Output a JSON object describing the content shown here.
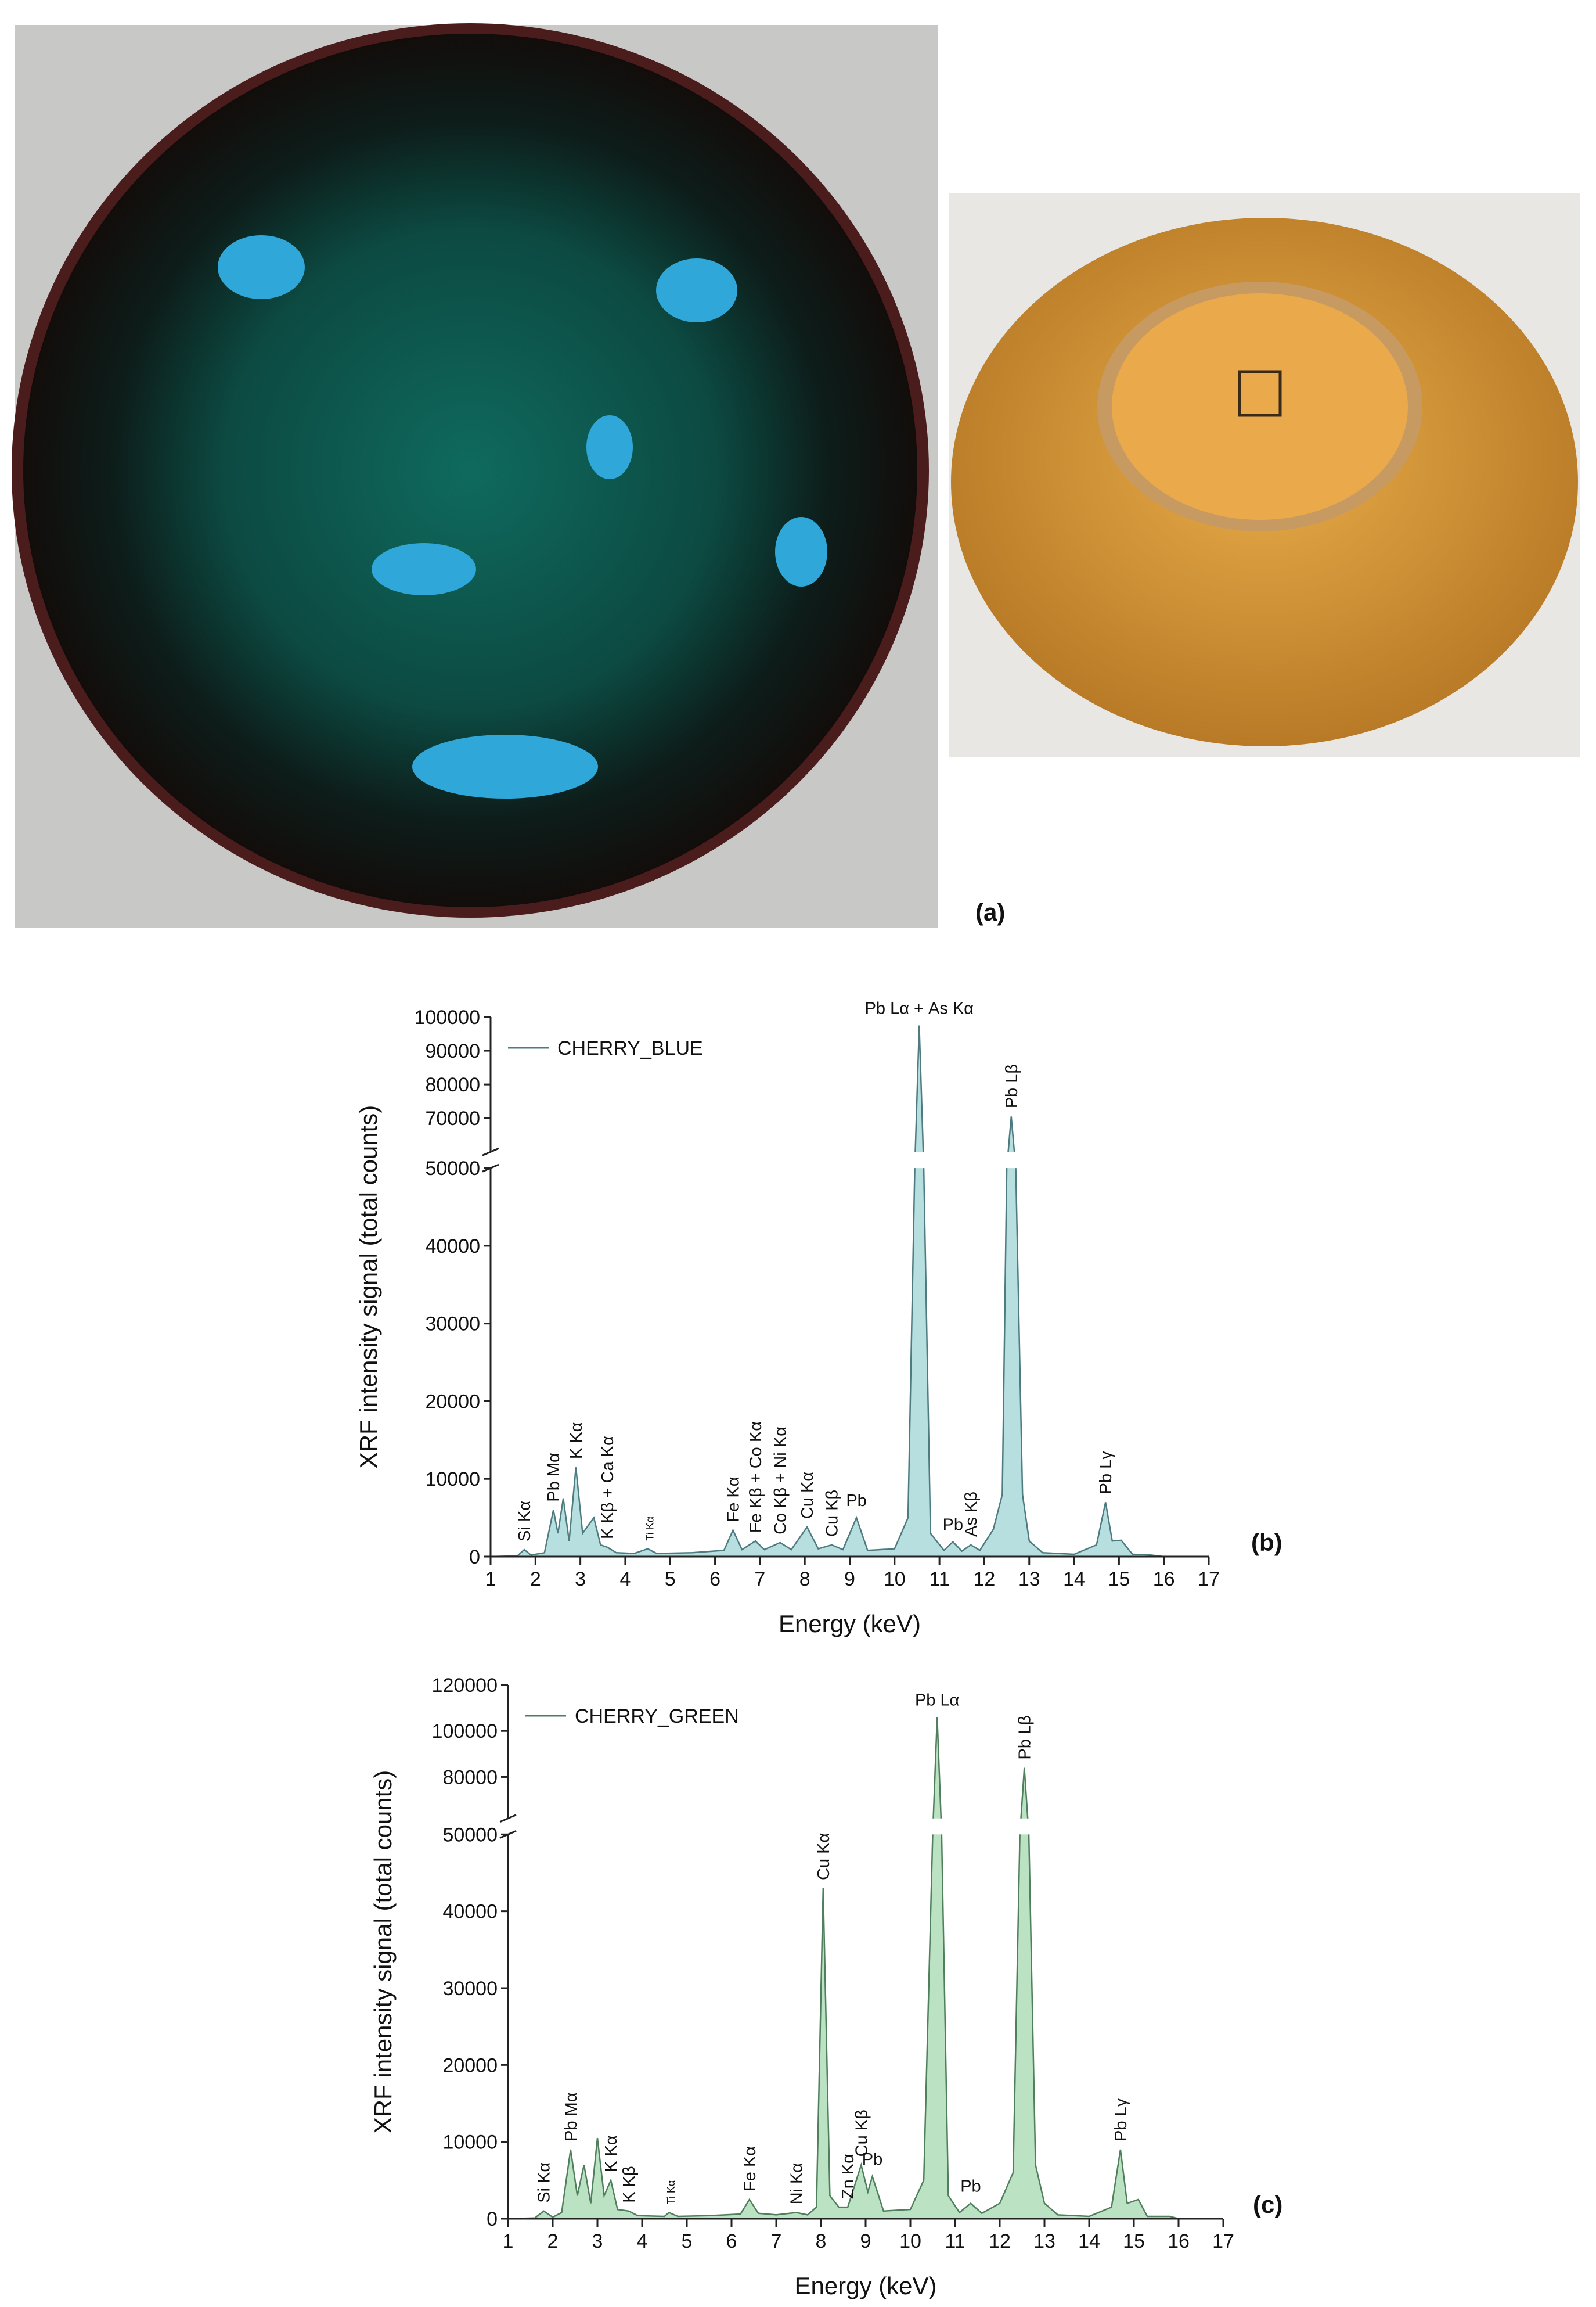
{
  "panel_labels": [
    "(a)",
    "(b)",
    "(c)"
  ],
  "chart_data": [
    {
      "type": "area",
      "xlabel": "Energy (keV)",
      "ylabel": "XRF intensity signal (total counts)",
      "xlim": [
        1,
        17
      ],
      "xticks": [
        1,
        2,
        3,
        4,
        5,
        6,
        7,
        8,
        9,
        10,
        11,
        12,
        13,
        14,
        15,
        16,
        17
      ],
      "ylim": [
        0,
        100000
      ],
      "ybreak": [
        50000,
        60000
      ],
      "yticks": [
        0,
        10000,
        20000,
        30000,
        40000,
        50000,
        70000,
        80000,
        90000,
        100000
      ],
      "legend": "top-left",
      "series": [
        {
          "name": "CHERRY_BLUE",
          "color": "#4d7b80",
          "fill_color": "#b7dfdf",
          "x": [
            1.0,
            1.6,
            1.75,
            1.9,
            2.2,
            2.4,
            2.5,
            2.62,
            2.75,
            2.9,
            3.05,
            3.3,
            3.45,
            3.6,
            3.8,
            4.2,
            4.5,
            4.7,
            5.5,
            6.2,
            6.4,
            6.6,
            6.9,
            7.1,
            7.45,
            7.7,
            8.05,
            8.3,
            8.6,
            8.85,
            9.15,
            9.4,
            10.0,
            10.3,
            10.45,
            10.55,
            10.65,
            10.8,
            11.1,
            11.3,
            11.5,
            11.7,
            11.9,
            12.2,
            12.4,
            12.5,
            12.6,
            12.7,
            12.85,
            13.0,
            13.3,
            14.0,
            14.5,
            14.7,
            14.85,
            15.05,
            15.3,
            15.7,
            16.0
          ],
          "values": [
            0,
            100,
            900,
            200,
            500,
            6000,
            3000,
            7500,
            2000,
            11500,
            3000,
            5000,
            1500,
            1200,
            500,
            400,
            1000,
            400,
            500,
            800,
            3400,
            900,
            2000,
            900,
            1800,
            900,
            3800,
            1000,
            1500,
            900,
            5000,
            800,
            1000,
            5000,
            50000,
            97500,
            50000,
            3000,
            800,
            1900,
            700,
            1500,
            800,
            3500,
            8000,
            50000,
            70500,
            50000,
            8000,
            2000,
            500,
            300,
            1500,
            7000,
            2000,
            2100,
            300,
            200,
            0
          ]
        }
      ],
      "annotations": [
        {
          "text": "Si Kα",
          "x": 1.75
        },
        {
          "text": "Pb Mα",
          "x": 2.4
        },
        {
          "text": "K Kα",
          "x": 2.9
        },
        {
          "text": "K Kβ + Ca Kα",
          "x": 3.6
        },
        {
          "text": "Ti Kα",
          "x": 4.5
        },
        {
          "text": "Fe Kα",
          "x": 6.4
        },
        {
          "text": "Fe Kβ + Co Kα",
          "x": 6.9
        },
        {
          "text": "Co Kβ + Ni Kα",
          "x": 7.45
        },
        {
          "text": "Cu Kα",
          "x": 8.05
        },
        {
          "text": "Cu Kβ",
          "x": 8.6
        },
        {
          "text": "Pb",
          "x": 9.15
        },
        {
          "text": "Pb Lα + As Kα",
          "x": 10.55
        },
        {
          "text": "Pb",
          "x": 11.3
        },
        {
          "text": "As Kβ",
          "x": 11.7
        },
        {
          "text": "Pb Lβ",
          "x": 12.6
        },
        {
          "text": "Pb Lγ",
          "x": 14.7
        }
      ]
    },
    {
      "type": "area",
      "xlabel": "Energy (keV)",
      "ylabel": "XRF intensity signal (total counts)",
      "xlim": [
        1,
        17
      ],
      "xticks": [
        1,
        2,
        3,
        4,
        5,
        6,
        7,
        8,
        9,
        10,
        11,
        12,
        13,
        14,
        15,
        16,
        17
      ],
      "ylim": [
        0,
        120000
      ],
      "ybreak": [
        50000,
        62000
      ],
      "yticks": [
        0,
        10000,
        20000,
        30000,
        40000,
        50000,
        80000,
        100000,
        120000
      ],
      "legend": "top-left",
      "series": [
        {
          "name": "CHERRY_GREEN",
          "color": "#4f7f5c",
          "fill_color": "#bce2c4",
          "x": [
            1.0,
            1.6,
            1.8,
            2.0,
            2.2,
            2.4,
            2.55,
            2.7,
            2.85,
            3.0,
            3.15,
            3.3,
            3.45,
            3.7,
            3.9,
            4.5,
            4.6,
            4.8,
            5.5,
            6.2,
            6.4,
            6.6,
            7.0,
            7.45,
            7.7,
            7.9,
            8.05,
            8.2,
            8.4,
            8.6,
            8.9,
            9.05,
            9.15,
            9.4,
            10.0,
            10.3,
            10.5,
            10.6,
            10.7,
            10.85,
            11.1,
            11.35,
            11.6,
            12.0,
            12.3,
            12.45,
            12.55,
            12.65,
            12.8,
            13.0,
            13.3,
            14.0,
            14.5,
            14.7,
            14.85,
            15.1,
            15.3,
            15.8,
            16.0
          ],
          "values": [
            0,
            100,
            1000,
            200,
            800,
            9000,
            3000,
            7000,
            2000,
            10500,
            3000,
            5000,
            1200,
            1000,
            400,
            300,
            800,
            300,
            400,
            600,
            2500,
            700,
            500,
            800,
            500,
            1500,
            43000,
            3000,
            1500,
            1500,
            7000,
            3500,
            5500,
            1000,
            1200,
            5000,
            50000,
            106000,
            50000,
            3000,
            800,
            2000,
            700,
            2000,
            6000,
            50000,
            84000,
            50000,
            7000,
            2000,
            500,
            300,
            1500,
            9000,
            2000,
            2500,
            300,
            300,
            0
          ]
        }
      ],
      "annotations": [
        {
          "text": "Si Kα",
          "x": 1.8
        },
        {
          "text": "Pb Mα",
          "x": 2.4
        },
        {
          "text": "K Kα",
          "x": 3.3
        },
        {
          "text": "K Kβ",
          "x": 3.7
        },
        {
          "text": "Ti Kα",
          "x": 4.6
        },
        {
          "text": "Fe Kα",
          "x": 6.4
        },
        {
          "text": "Ni Kα",
          "x": 7.45
        },
        {
          "text": "Cu Kα",
          "x": 8.05
        },
        {
          "text": "Zn Kα",
          "x": 8.6
        },
        {
          "text": "Cu Kβ",
          "x": 8.9
        },
        {
          "text": "Pb",
          "x": 9.15
        },
        {
          "text": "Pb Lα",
          "x": 10.6
        },
        {
          "text": "Pb",
          "x": 11.35
        },
        {
          "text": "Pb Lβ",
          "x": 12.55
        },
        {
          "text": "Pb Lγ",
          "x": 14.7
        }
      ]
    }
  ]
}
